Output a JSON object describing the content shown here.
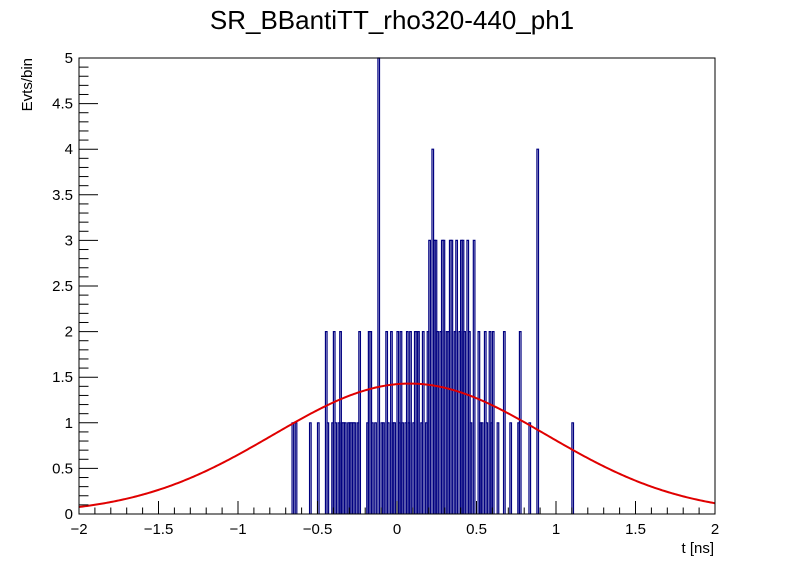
{
  "chart_data": {
    "type": "histogram",
    "title": "SR_BBantiTT_rho320-440_ph1",
    "xlabel": "t [ns]",
    "ylabel": "Evts/bin",
    "xlim": [
      -2,
      2
    ],
    "ylim": [
      0,
      5
    ],
    "x_ticks": [
      -2,
      -1.5,
      -1,
      -0.5,
      0,
      0.5,
      1,
      1.5,
      2
    ],
    "x_tick_labels": [
      "−2",
      "−1.5",
      "−1",
      "−0.5",
      "0",
      "0.5",
      "1",
      "1.5",
      "2"
    ],
    "y_ticks": [
      0,
      0.5,
      1,
      1.5,
      2,
      2.5,
      3,
      3.5,
      4,
      4.5,
      5
    ],
    "y_tick_labels": [
      "0",
      "0.5",
      "1",
      "1.5",
      "2",
      "2.5",
      "3",
      "3.5",
      "4",
      "4.5",
      "5"
    ],
    "grid": false,
    "legend": "none",
    "histogram": {
      "name": "",
      "color": "#000080",
      "bin_width": 0.01,
      "bins": [
        [
          -0.66,
          1
        ],
        [
          -0.64,
          1
        ],
        [
          -0.55,
          1
        ],
        [
          -0.5,
          1
        ],
        [
          -0.45,
          2
        ],
        [
          -0.44,
          1
        ],
        [
          -0.41,
          1
        ],
        [
          -0.4,
          2
        ],
        [
          -0.39,
          1
        ],
        [
          -0.37,
          1
        ],
        [
          -0.36,
          2
        ],
        [
          -0.35,
          1
        ],
        [
          -0.34,
          1
        ],
        [
          -0.33,
          1
        ],
        [
          -0.31,
          1
        ],
        [
          -0.3,
          1
        ],
        [
          -0.29,
          1
        ],
        [
          -0.28,
          1
        ],
        [
          -0.27,
          1
        ],
        [
          -0.25,
          1
        ],
        [
          -0.24,
          2
        ],
        [
          -0.19,
          1
        ],
        [
          -0.18,
          2
        ],
        [
          -0.17,
          2
        ],
        [
          -0.16,
          1
        ],
        [
          -0.14,
          1
        ],
        [
          -0.12,
          5
        ],
        [
          -0.1,
          1
        ],
        [
          -0.09,
          1
        ],
        [
          -0.07,
          2
        ],
        [
          -0.06,
          1
        ],
        [
          -0.04,
          2
        ],
        [
          -0.03,
          1
        ],
        [
          -0.02,
          1
        ],
        [
          0.0,
          2
        ],
        [
          0.01,
          1
        ],
        [
          0.02,
          2
        ],
        [
          0.03,
          1
        ],
        [
          0.05,
          1
        ],
        [
          0.06,
          2
        ],
        [
          0.07,
          1
        ],
        [
          0.08,
          2
        ],
        [
          0.1,
          1
        ],
        [
          0.11,
          2
        ],
        [
          0.12,
          2
        ],
        [
          0.13,
          2
        ],
        [
          0.15,
          1
        ],
        [
          0.16,
          2
        ],
        [
          0.18,
          1
        ],
        [
          0.19,
          2
        ],
        [
          0.2,
          3
        ],
        [
          0.22,
          4
        ],
        [
          0.23,
          3
        ],
        [
          0.24,
          3
        ],
        [
          0.25,
          2
        ],
        [
          0.27,
          2
        ],
        [
          0.28,
          3
        ],
        [
          0.29,
          3
        ],
        [
          0.31,
          2
        ],
        [
          0.32,
          2
        ],
        [
          0.33,
          3
        ],
        [
          0.34,
          3
        ],
        [
          0.36,
          2
        ],
        [
          0.37,
          3
        ],
        [
          0.39,
          2
        ],
        [
          0.4,
          3
        ],
        [
          0.41,
          3
        ],
        [
          0.42,
          2
        ],
        [
          0.44,
          3
        ],
        [
          0.45,
          2
        ],
        [
          0.46,
          1
        ],
        [
          0.48,
          3
        ],
        [
          0.51,
          2
        ],
        [
          0.52,
          1
        ],
        [
          0.53,
          1
        ],
        [
          0.55,
          2
        ],
        [
          0.56,
          1
        ],
        [
          0.58,
          2
        ],
        [
          0.59,
          1
        ],
        [
          0.6,
          2
        ],
        [
          0.63,
          1
        ],
        [
          0.67,
          2
        ],
        [
          0.71,
          1
        ],
        [
          0.76,
          1
        ],
        [
          0.77,
          2
        ],
        [
          0.83,
          1
        ],
        [
          0.88,
          4
        ],
        [
          1.1,
          1
        ]
      ]
    },
    "fit": {
      "name": "",
      "color": "#e00000",
      "model": "gaussian",
      "amplitude": 1.43,
      "mean": 0.08,
      "sigma": 0.86
    }
  }
}
